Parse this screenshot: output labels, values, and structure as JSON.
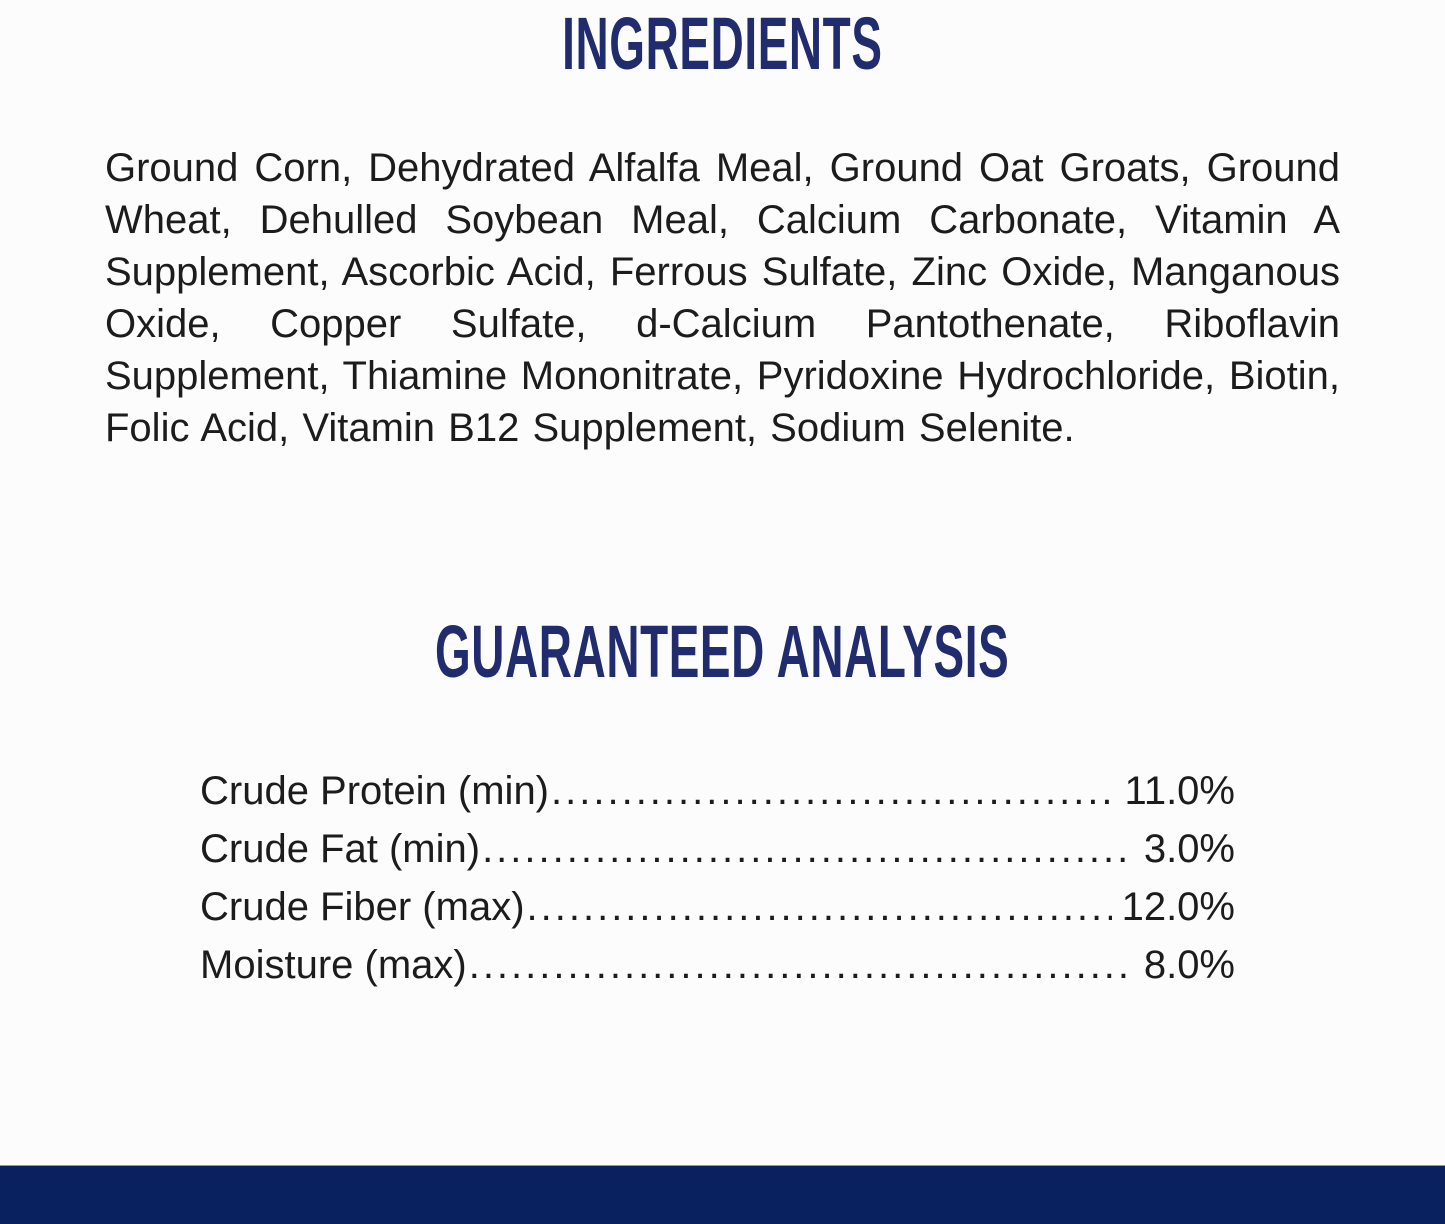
{
  "page": {
    "background_color": "#fcfcfc",
    "heading_color": "#202c6d",
    "body_text_color": "#1c1c1c",
    "footer_bar_color": "#0a2160"
  },
  "ingredients": {
    "heading": "INGREDIENTS",
    "text": "Ground Corn, Dehydrated Alfalfa Meal, Ground Oat Groats, Ground Wheat, Dehulled Soybean Meal, Calcium Carbonate, Vitamin A Supplement, Ascorbic Acid, Ferrous Sulfate, Zinc Oxide, Manganous Oxide, Copper Sulfate, d-Calcium Pantothenate, Riboflavin Supplement, Thiamine Mononitrate, Pyridoxine Hydrochloride, Biotin, Folic Acid, Vitamin B12 Supplement, Sodium Selenite."
  },
  "guaranteed_analysis": {
    "heading": "GUARANTEED ANALYSIS",
    "rows": [
      {
        "label": "Crude Protein (min)",
        "value": "11.0%"
      },
      {
        "label": "Crude Fat (min)",
        "value": "3.0%"
      },
      {
        "label": "Crude Fiber (max)",
        "value": "12.0%"
      },
      {
        "label": "Moisture (max)",
        "value": "8.0%"
      }
    ]
  }
}
